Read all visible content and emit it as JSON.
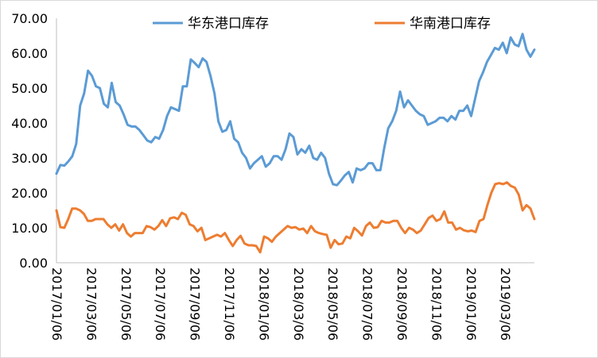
{
  "chart_data": {
    "type": "line",
    "title": "",
    "xlabel": "",
    "ylabel": "",
    "ylim": [
      0,
      70
    ],
    "y_ticks": [
      "0.00",
      "10.00",
      "20.00",
      "30.00",
      "40.00",
      "50.00",
      "60.00",
      "70.00"
    ],
    "x_ticks": [
      "2017/01/06",
      "2017/03/06",
      "2017/05/06",
      "2017/07/06",
      "2017/09/06",
      "2017/11/06",
      "2018/01/06",
      "2018/03/06",
      "2018/05/06",
      "2018/07/06",
      "2018/09/06",
      "2018/11/06",
      "2019/01/06",
      "2019/03/06"
    ],
    "grid": false,
    "legend": "top",
    "series": [
      {
        "name": "华东港口库存",
        "color": "#5b9bd5",
        "values": [
          25.5,
          28,
          27.8,
          29,
          30.5,
          34,
          45,
          48.5,
          55,
          53.5,
          50.5,
          50,
          45.5,
          44.5,
          51.5,
          46,
          45,
          42.5,
          39.5,
          39,
          39,
          38,
          36.5,
          35,
          34.5,
          36,
          35.5,
          38,
          42,
          44.5,
          44,
          43.5,
          50.5,
          50.5,
          58.2,
          57.2,
          56,
          58.5,
          57.5,
          53.5,
          48.5,
          40.5,
          37.5,
          38,
          40.5,
          35.5,
          34.5,
          31.5,
          30,
          27,
          28.5,
          29.5,
          30.5,
          27.5,
          28.5,
          30.5,
          30.5,
          29.5,
          32.5,
          37,
          36,
          31,
          32.5,
          31.5,
          33.5,
          30,
          29.5,
          31.5,
          30,
          25.5,
          22.5,
          22.2,
          23.5,
          25,
          26,
          23,
          27,
          26.5,
          27,
          28.5,
          28.5,
          26.5,
          26.5,
          33,
          38.5,
          40.5,
          43.5,
          49,
          44.5,
          46.5,
          45,
          43.5,
          42.5,
          42,
          39.5,
          40,
          40.5,
          41.5,
          41.5,
          40.5,
          42,
          41,
          43.5,
          43.5,
          45,
          42,
          47,
          52,
          54.5,
          57.5,
          59.5,
          61.5,
          61,
          63,
          60,
          64.5,
          62.5,
          62,
          65.5,
          61,
          59,
          61
        ]
      },
      {
        "name": "华南港口库存",
        "color": "#ed7d31",
        "values": [
          15,
          10.2,
          10,
          12.5,
          15.5,
          15.5,
          15,
          14,
          12,
          12,
          12.5,
          12.5,
          12.5,
          11,
          10,
          11,
          9.2,
          11,
          8.5,
          7.5,
          8.5,
          8.5,
          8.5,
          10.5,
          10.2,
          9.5,
          10.5,
          12.2,
          10.5,
          12.7,
          13,
          12.5,
          14.3,
          13.7,
          11,
          10.5,
          9,
          10,
          6.5,
          7,
          7.5,
          8,
          7.5,
          8.5,
          6.5,
          4.8,
          6.5,
          7.7,
          5.5,
          5,
          5,
          4.8,
          3,
          7.5,
          7,
          6,
          7.5,
          8.5,
          9.5,
          10.5,
          10,
          10.2,
          9.5,
          9.8,
          8.5,
          10.5,
          9,
          8.5,
          8.2,
          8,
          4.3,
          6.5,
          5.3,
          5.5,
          7.5,
          7,
          10,
          9,
          7.8,
          10.5,
          11.5,
          10,
          10.2,
          12,
          11.5,
          11.5,
          12,
          12,
          10,
          8.5,
          10,
          9.5,
          8.5,
          9.2,
          11,
          12.8,
          13.5,
          12,
          12.5,
          14.7,
          11.5,
          11.5,
          9.5,
          10,
          9.3,
          9,
          9.2,
          8.8,
          12,
          12.5,
          16.5,
          20,
          22.5,
          22.8,
          22.5,
          23,
          22,
          21.5,
          19.5,
          15,
          16.5,
          15.5,
          12.5
        ]
      }
    ]
  }
}
